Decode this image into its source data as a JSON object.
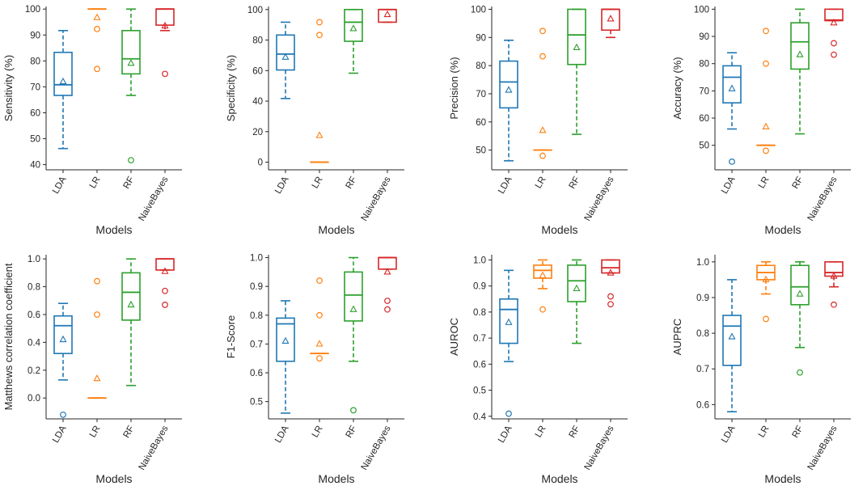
{
  "x_title": "Models",
  "categories": [
    "LDA",
    "LR",
    "RF",
    "NaiveBayes"
  ],
  "colors": [
    "#1f77b4",
    "#ff7f0e",
    "#2ca02c",
    "#d62728"
  ],
  "chart_data": [
    {
      "type": "box",
      "title": "",
      "ylabel": "Sensitivity (%)",
      "xlabel": "Models",
      "ylim": [
        38,
        101
      ],
      "yticks": [
        40,
        50,
        60,
        70,
        80,
        90,
        100
      ],
      "tick_decimals": 0,
      "boxes": [
        {
          "name": "LDA",
          "whislo": 46.2,
          "q1": 66.7,
          "med": 70.8,
          "q3": 83.3,
          "whishi": 91.7,
          "mean": 72.0,
          "fliers": []
        },
        {
          "name": "LR",
          "whislo": 100,
          "q1": 100,
          "med": 100,
          "q3": 100,
          "whishi": 100,
          "mean": 96.7,
          "fliers": [
            92.3,
            76.9
          ]
        },
        {
          "name": "RF",
          "whislo": 66.7,
          "q1": 75.0,
          "med": 80.8,
          "q3": 91.7,
          "whishi": 100,
          "mean": 79.1,
          "fliers": [
            41.7
          ]
        },
        {
          "name": "NaiveBayes",
          "whislo": 91.7,
          "q1": 93.8,
          "med": 100,
          "q3": 100,
          "whishi": 100,
          "mean": 93.5,
          "fliers": [
            75.0
          ]
        }
      ]
    },
    {
      "type": "box",
      "title": "",
      "ylabel": "Specificity (%)",
      "xlabel": "Models",
      "ylim": [
        -5,
        102
      ],
      "yticks": [
        0,
        20,
        40,
        60,
        80,
        100
      ],
      "tick_decimals": 0,
      "boxes": [
        {
          "name": "LDA",
          "whislo": 41.7,
          "q1": 60.4,
          "med": 70.8,
          "q3": 83.3,
          "whishi": 91.7,
          "mean": 68.8,
          "fliers": []
        },
        {
          "name": "LR",
          "whislo": 0,
          "q1": 0,
          "med": 0,
          "q3": 0,
          "whishi": 0,
          "mean": 17.5,
          "fliers": [
            91.7,
            83.3
          ]
        },
        {
          "name": "RF",
          "whislo": 58.3,
          "q1": 79.2,
          "med": 91.7,
          "q3": 100,
          "whishi": 100,
          "mean": 87.5,
          "fliers": []
        },
        {
          "name": "NaiveBayes",
          "whislo": 91.7,
          "q1": 91.7,
          "med": 100,
          "q3": 100,
          "whishi": 100,
          "mean": 96.7,
          "fliers": []
        }
      ]
    },
    {
      "type": "box",
      "title": "",
      "ylabel": "Precision (%)",
      "xlabel": "Models",
      "ylim": [
        43,
        101
      ],
      "yticks": [
        50,
        60,
        70,
        80,
        90,
        100
      ],
      "tick_decimals": 0,
      "boxes": [
        {
          "name": "LDA",
          "whislo": 46.2,
          "q1": 65.0,
          "med": 74.2,
          "q3": 81.6,
          "whishi": 89.0,
          "mean": 71.3,
          "fliers": []
        },
        {
          "name": "LR",
          "whislo": 50,
          "q1": 50,
          "med": 50,
          "q3": 50,
          "whishi": 50,
          "mean": 57.0,
          "fliers": [
            92.3,
            83.3,
            48.0
          ]
        },
        {
          "name": "RF",
          "whislo": 55.6,
          "q1": 80.4,
          "med": 90.9,
          "q3": 100,
          "whishi": 100,
          "mean": 86.4,
          "fliers": []
        },
        {
          "name": "NaiveBayes",
          "whislo": 90.0,
          "q1": 92.6,
          "med": 100,
          "q3": 100,
          "whishi": 100,
          "mean": 96.6,
          "fliers": []
        }
      ]
    },
    {
      "type": "box",
      "title": "",
      "ylabel": "Accuracy (%)",
      "xlabel": "Models",
      "ylim": [
        41,
        101
      ],
      "yticks": [
        50,
        60,
        70,
        80,
        90,
        100
      ],
      "tick_decimals": 0,
      "boxes": [
        {
          "name": "LDA",
          "whislo": 56.0,
          "q1": 65.6,
          "med": 75.0,
          "q3": 79.2,
          "whishi": 84.0,
          "mean": 70.8,
          "fliers": [
            44.0
          ]
        },
        {
          "name": "LR",
          "whislo": 50,
          "q1": 50,
          "med": 50,
          "q3": 50,
          "whishi": 50,
          "mean": 56.8,
          "fliers": [
            92.0,
            80.0,
            48.0
          ]
        },
        {
          "name": "RF",
          "whislo": 54.2,
          "q1": 78.0,
          "med": 88.0,
          "q3": 95.0,
          "whishi": 100,
          "mean": 83.3,
          "fliers": []
        },
        {
          "name": "NaiveBayes",
          "whislo": 95.8,
          "q1": 95.8,
          "med": 96.0,
          "q3": 100,
          "whishi": 100,
          "mean": 95.0,
          "fliers": [
            87.5,
            83.3
          ]
        }
      ]
    },
    {
      "type": "box",
      "title": "",
      "ylabel": "Matthews correlation coefficient",
      "xlabel": "Models",
      "ylim": [
        -0.15,
        1.03
      ],
      "yticks": [
        0.0,
        0.2,
        0.4,
        0.6,
        0.8,
        1.0
      ],
      "tick_decimals": 1,
      "boxes": [
        {
          "name": "LDA",
          "whislo": 0.13,
          "q1": 0.32,
          "med": 0.52,
          "q3": 0.59,
          "whishi": 0.68,
          "mean": 0.42,
          "fliers": [
            -0.12
          ]
        },
        {
          "name": "LR",
          "whislo": 0,
          "q1": 0,
          "med": 0,
          "q3": 0,
          "whishi": 0,
          "mean": 0.14,
          "fliers": [
            0.84,
            0.6
          ]
        },
        {
          "name": "RF",
          "whislo": 0.09,
          "q1": 0.56,
          "med": 0.76,
          "q3": 0.9,
          "whishi": 1.0,
          "mean": 0.67,
          "fliers": []
        },
        {
          "name": "NaiveBayes",
          "whislo": 0.92,
          "q1": 0.92,
          "med": 1.0,
          "q3": 1.0,
          "whishi": 1.0,
          "mean": 0.91,
          "fliers": [
            0.77,
            0.67
          ]
        }
      ]
    },
    {
      "type": "box",
      "title": "",
      "ylabel": "F1-Score",
      "xlabel": "Models",
      "ylim": [
        0.44,
        1.01
      ],
      "yticks": [
        0.5,
        0.6,
        0.7,
        0.8,
        0.9,
        1.0
      ],
      "tick_decimals": 1,
      "boxes": [
        {
          "name": "LDA",
          "whislo": 0.46,
          "q1": 0.64,
          "med": 0.77,
          "q3": 0.79,
          "whishi": 0.85,
          "mean": 0.71,
          "fliers": []
        },
        {
          "name": "LR",
          "whislo": 0.667,
          "q1": 0.667,
          "med": 0.667,
          "q3": 0.667,
          "whishi": 0.667,
          "mean": 0.7,
          "fliers": [
            0.92,
            0.8,
            0.65
          ]
        },
        {
          "name": "RF",
          "whislo": 0.64,
          "q1": 0.78,
          "med": 0.87,
          "q3": 0.95,
          "whishi": 1.0,
          "mean": 0.82,
          "fliers": [
            0.47
          ]
        },
        {
          "name": "NaiveBayes",
          "whislo": 0.96,
          "q1": 0.96,
          "med": 1.0,
          "q3": 1.0,
          "whishi": 1.0,
          "mean": 0.95,
          "fliers": [
            0.85,
            0.82
          ]
        }
      ]
    },
    {
      "type": "box",
      "title": "",
      "ylabel": "AUROC",
      "xlabel": "Models",
      "ylim": [
        0.39,
        1.02
      ],
      "yticks": [
        0.4,
        0.5,
        0.6,
        0.7,
        0.8,
        0.9,
        1.0
      ],
      "tick_decimals": 1,
      "boxes": [
        {
          "name": "LDA",
          "whislo": 0.61,
          "q1": 0.68,
          "med": 0.81,
          "q3": 0.85,
          "whishi": 0.96,
          "mean": 0.76,
          "fliers": [
            0.41
          ]
        },
        {
          "name": "LR",
          "whislo": 0.89,
          "q1": 0.93,
          "med": 0.96,
          "q3": 0.98,
          "whishi": 1.0,
          "mean": 0.94,
          "fliers": [
            0.81
          ]
        },
        {
          "name": "RF",
          "whislo": 0.68,
          "q1": 0.84,
          "med": 0.92,
          "q3": 0.98,
          "whishi": 1.0,
          "mean": 0.89,
          "fliers": []
        },
        {
          "name": "NaiveBayes",
          "whislo": 0.95,
          "q1": 0.95,
          "med": 0.97,
          "q3": 1.0,
          "whishi": 1.0,
          "mean": 0.95,
          "fliers": [
            0.86,
            0.83
          ]
        }
      ]
    },
    {
      "type": "box",
      "title": "",
      "ylabel": "AUPRC",
      "xlabel": "Models",
      "ylim": [
        0.56,
        1.02
      ],
      "yticks": [
        0.6,
        0.7,
        0.8,
        0.9,
        1.0
      ],
      "tick_decimals": 1,
      "boxes": [
        {
          "name": "LDA",
          "whislo": 0.58,
          "q1": 0.71,
          "med": 0.82,
          "q3": 0.85,
          "whishi": 0.95,
          "mean": 0.79,
          "fliers": []
        },
        {
          "name": "LR",
          "whislo": 0.91,
          "q1": 0.95,
          "med": 0.97,
          "q3": 0.99,
          "whishi": 1.0,
          "mean": 0.95,
          "fliers": [
            0.84
          ]
        },
        {
          "name": "RF",
          "whislo": 0.76,
          "q1": 0.88,
          "med": 0.93,
          "q3": 0.99,
          "whishi": 1.0,
          "mean": 0.91,
          "fliers": [
            0.69
          ]
        },
        {
          "name": "NaiveBayes",
          "whislo": 0.93,
          "q1": 0.96,
          "med": 0.97,
          "q3": 1.0,
          "whishi": 1.0,
          "mean": 0.96,
          "fliers": [
            0.88
          ]
        }
      ]
    }
  ]
}
